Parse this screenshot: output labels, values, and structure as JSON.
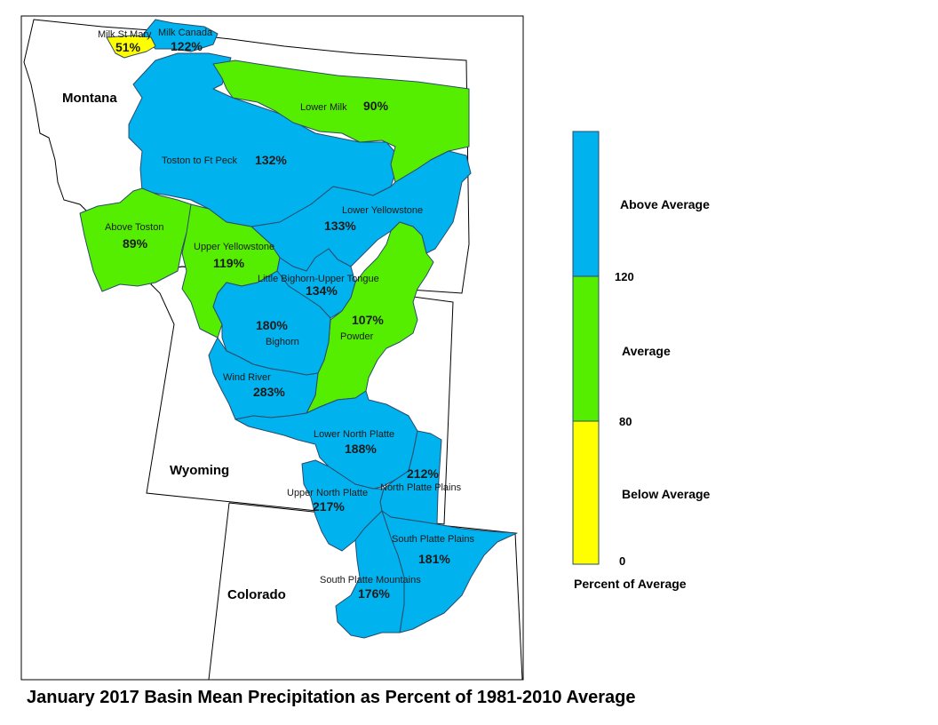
{
  "title": "January 2017 Basin Mean Precipitation as Percent of 1981-2010 Average",
  "colors": {
    "above": "#00B2EE",
    "average": "#55EE00",
    "below": "#FFFF00",
    "outline": "#1a3a5a",
    "state_line": "#000000"
  },
  "states": [
    {
      "id": "montana",
      "name": "Montana"
    },
    {
      "id": "wyoming",
      "name": "Wyoming"
    },
    {
      "id": "colorado",
      "name": "Colorado"
    }
  ],
  "basins": [
    {
      "id": "milk-st-mary",
      "name": "Milk St Mary",
      "percent": "51%",
      "category": "below"
    },
    {
      "id": "milk-canada",
      "name": "Milk Canada",
      "percent": "122%",
      "category": "above"
    },
    {
      "id": "lower-milk",
      "name": "Lower Milk",
      "percent": "90%",
      "category": "average"
    },
    {
      "id": "toston-to-ft-peck",
      "name": "Toston to Ft Peck",
      "percent": "132%",
      "category": "above"
    },
    {
      "id": "above-toston",
      "name": "Above Toston",
      "percent": "89%",
      "category": "average"
    },
    {
      "id": "lower-yellowstone",
      "name": "Lower Yellowstone",
      "percent": "133%",
      "category": "above"
    },
    {
      "id": "upper-yellowstone",
      "name": "Upper Yellowstone",
      "percent": "119%",
      "category": "average"
    },
    {
      "id": "little-bighorn-upper-tongue",
      "name": "Little Bighorn-Upper Tongue",
      "percent": "134%",
      "category": "above"
    },
    {
      "id": "powder",
      "name": "Powder",
      "percent": "107%",
      "category": "average"
    },
    {
      "id": "bighorn",
      "name": "Bighorn",
      "percent": "180%",
      "category": "above"
    },
    {
      "id": "wind-river",
      "name": "Wind River",
      "percent": "283%",
      "category": "above"
    },
    {
      "id": "lower-north-platte",
      "name": "Lower North Platte",
      "percent": "188%",
      "category": "above"
    },
    {
      "id": "north-platte-plains",
      "name": "North Platte Plains",
      "percent": "212%",
      "category": "above"
    },
    {
      "id": "upper-north-platte",
      "name": "Upper North Platte",
      "percent": "217%",
      "category": "above"
    },
    {
      "id": "south-platte-plains",
      "name": "South Platte Plains",
      "percent": "181%",
      "category": "above"
    },
    {
      "id": "south-platte-mountains",
      "name": "South Platte Mountains",
      "percent": "176%",
      "category": "above"
    }
  ],
  "legend": {
    "categories": [
      {
        "label": "Above Average",
        "color": "#00B2EE",
        "range": [
          120,
          null
        ]
      },
      {
        "label": "Average",
        "color": "#55EE00",
        "range": [
          80,
          120
        ]
      },
      {
        "label": "Below Average",
        "color": "#FFFF00",
        "range": [
          0,
          80
        ]
      }
    ],
    "ticks": [
      "120",
      "80",
      "0"
    ],
    "title": "Percent of Average"
  }
}
